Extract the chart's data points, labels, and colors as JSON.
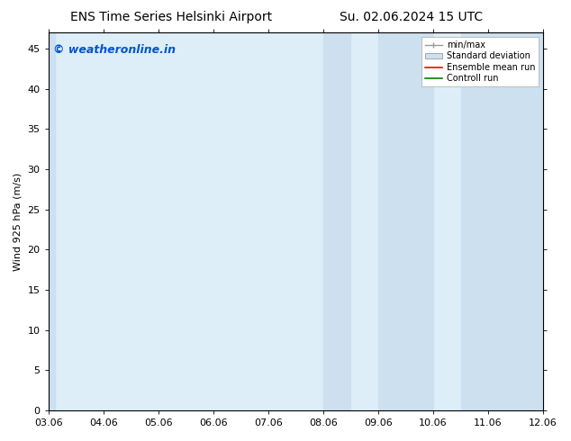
{
  "title_left": "ENS Time Series Helsinki Airport",
  "title_right": "Su. 02.06.2024 15 UTC",
  "ylabel": "Wind 925 hPa (m/s)",
  "xlabel_ticks": [
    "03.06",
    "04.06",
    "05.06",
    "06.06",
    "07.06",
    "08.06",
    "09.06",
    "10.06",
    "11.06",
    "12.06"
  ],
  "xlim": [
    0,
    9
  ],
  "ylim": [
    0,
    47
  ],
  "yticks": [
    0,
    5,
    10,
    15,
    20,
    25,
    30,
    35,
    40,
    45
  ],
  "shaded_bands": [
    {
      "x_start": 0.0,
      "x_end": 0.12,
      "color": "#cce0f0"
    },
    {
      "x_start": 5.0,
      "x_end": 5.5,
      "color": "#cce0f0"
    },
    {
      "x_start": 6.0,
      "x_end": 7.0,
      "color": "#cce0f0"
    },
    {
      "x_start": 7.5,
      "x_end": 9.0,
      "color": "#cce0f0"
    }
  ],
  "watermark_text": "© weatheronline.in",
  "watermark_color": "#0055cc",
  "legend_entries": [
    {
      "label": "min/max",
      "color": "#999999"
    },
    {
      "label": "Standard deviation",
      "color": "#cce0f0"
    },
    {
      "label": "Ensemble mean run",
      "color": "red"
    },
    {
      "label": "Controll run",
      "color": "green"
    }
  ],
  "bg_color": "#ffffff",
  "plot_bg_color": "#ddeef8",
  "border_color": "#000000",
  "font_size": 8,
  "title_font_size": 10
}
